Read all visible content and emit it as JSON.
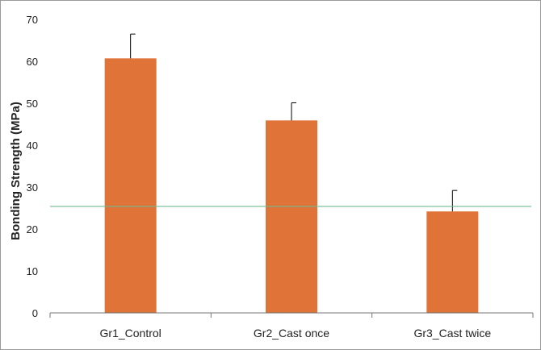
{
  "chart_data": {
    "type": "bar",
    "title": "",
    "xlabel": "",
    "ylabel": "Bonding Strength (MPa)",
    "categories": [
      "Gr1_Control",
      "Gr2_Cast once",
      "Gr3_Cast twice"
    ],
    "values": [
      60.7,
      45.9,
      24.2
    ],
    "error_upper": [
      5.8,
      4.2,
      5.0
    ],
    "ylim": [
      0,
      70
    ],
    "yticks": [
      0,
      10,
      20,
      30,
      40,
      50,
      60,
      70
    ],
    "reference_line": 25.4,
    "grid": false,
    "legend": "none",
    "colors": {
      "bar": "#E07438",
      "error_bar": "#000000",
      "reference_line": "#6DBB8F",
      "axis": "#777777"
    }
  }
}
